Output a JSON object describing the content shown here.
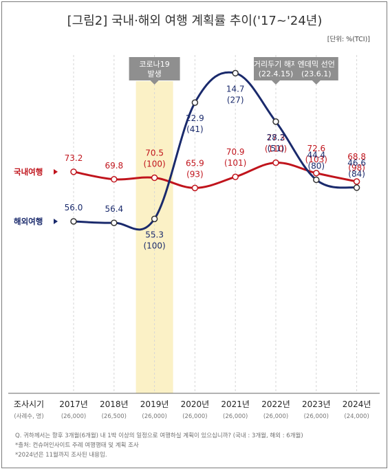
{
  "title": "[그림2] 국내·해외 여행 계획률 추이('17~'24년)",
  "unit": "[단위: %(TCI)]",
  "chart_data": {
    "type": "line",
    "categories": [
      "2017년",
      "2018년",
      "2019년",
      "2020년",
      "2021년",
      "2022년",
      "2023년",
      "2024년"
    ],
    "sample_sizes": [
      "(26,000)",
      "(26,500)",
      "(26,000)",
      "(26,000)",
      "(26,000)",
      "(26,000)",
      "(26,000)",
      "(24,000)"
    ],
    "x_header": "조사시기",
    "x_header_sub": "(사례수, 명)",
    "highlight_category": "2019년",
    "series": [
      {
        "name": "국내여행",
        "color": "#c0141c",
        "values": [
          73.2,
          69.8,
          70.5,
          65.9,
          70.9,
          77.3,
          72.6,
          68.8
        ],
        "value_labels": [
          "73.2",
          "69.8",
          "70.5",
          "65.9",
          "70.9",
          "77.3",
          "72.6",
          "68.8"
        ],
        "index_labels": [
          "",
          "",
          "(100)",
          "(93)",
          "(101)",
          "(110)",
          "(103)",
          "(98)"
        ]
      },
      {
        "name": "해외여행",
        "color": "#1a2a6c",
        "values": [
          56.0,
          56.4,
          55.3,
          22.9,
          14.7,
          28.2,
          44.4,
          46.6
        ],
        "value_labels": [
          "56.0",
          "56.4",
          "55.3",
          "22.9",
          "14.7",
          "28.2",
          "44.4",
          "46.6"
        ],
        "index_labels": [
          "",
          "",
          "(100)",
          "(41)",
          "(27)",
          "(51)",
          "(80)",
          "(84)"
        ]
      }
    ],
    "events": [
      {
        "line1": "코로나19",
        "line2": "발생",
        "at": "2019년"
      },
      {
        "line1": "거리두기 해제",
        "line2": "(22.4.15)",
        "at": "2022년"
      },
      {
        "line1": "엔데믹 선언",
        "line2": "(23.6.1)",
        "at": "2023년"
      }
    ],
    "notes": [
      "Q. 귀하께서는 향후 3개월(6개월) 내 1박 이상의 일정으로 여행하실 계획이 있으십니까? (국내 : 3개월, 해외 : 6개월)",
      "*출처: 컨슈머인사이트 주례 여행행태 및 계획 조사",
      "*2024년은 11월까지 조사된 내용임."
    ]
  }
}
